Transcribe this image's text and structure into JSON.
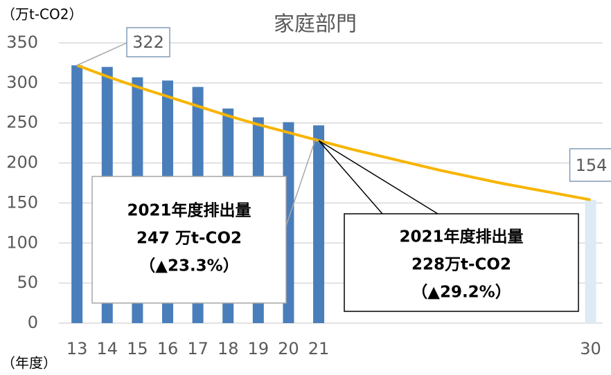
{
  "chart_data": {
    "type": "bar",
    "title": "家庭部門",
    "y_axis_label": "（万t-CO2）",
    "x_axis_label": "（年度）",
    "x": [
      13,
      14,
      15,
      16,
      17,
      18,
      19,
      20,
      21,
      30
    ],
    "xlim": [
      12.4,
      30.4
    ],
    "ylim": [
      0,
      350
    ],
    "yticks": [
      0,
      50,
      100,
      150,
      200,
      250,
      300,
      350
    ],
    "grid": true,
    "series": [
      {
        "type": "bar",
        "colors": [
          "#4a7ebb",
          "#4a7ebb",
          "#4a7ebb",
          "#4a7ebb",
          "#4a7ebb",
          "#4a7ebb",
          "#4a7ebb",
          "#4a7ebb",
          "#4a7ebb",
          "#dcebf5"
        ],
        "values": [
          322,
          320,
          307,
          303,
          295,
          268,
          257,
          251,
          247,
          154
        ]
      },
      {
        "type": "line",
        "color": "#f7b500",
        "x": [
          13,
          14,
          15,
          16,
          17,
          18,
          19,
          20,
          21,
          22,
          23,
          24,
          25,
          26,
          27,
          28,
          29,
          30
        ],
        "values": [
          322,
          308,
          295,
          283,
          271,
          259,
          248,
          238,
          228,
          218,
          209,
          200,
          191,
          183,
          175,
          168,
          161,
          154
        ]
      }
    ],
    "annotations": [
      {
        "lines": [
          "2021年度排出量",
          "247 万t-CO2",
          "（▲23.3%）"
        ]
      },
      {
        "lines": [
          "2021年度排出量",
          "228万t-CO2",
          "（▲29.2%）"
        ]
      }
    ]
  }
}
